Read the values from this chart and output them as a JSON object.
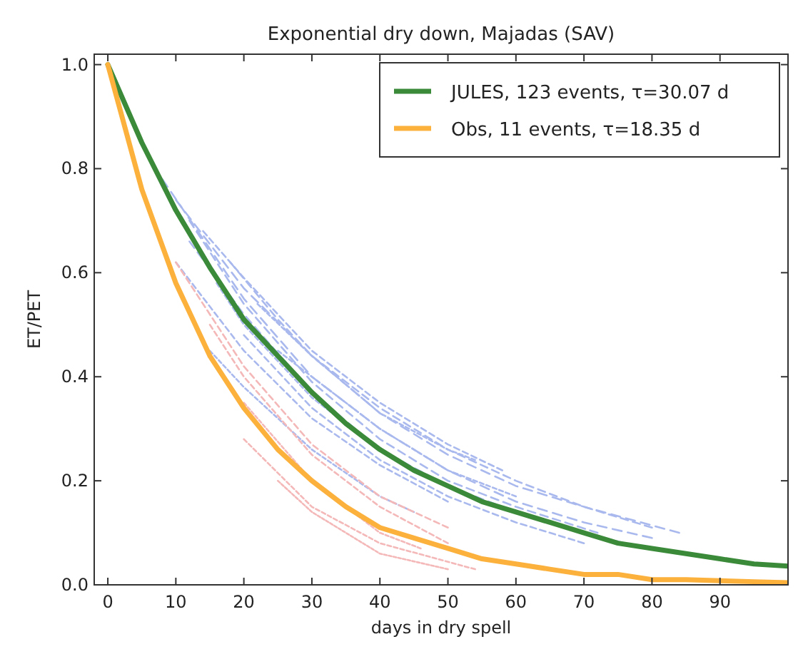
{
  "chart_data": {
    "type": "line",
    "title": "Exponential dry down, Majadas (SAV)",
    "xlabel": "days in dry spell",
    "ylabel": "ET/PET",
    "xlim": [
      -2,
      100
    ],
    "ylim": [
      0,
      1.02
    ],
    "xticks": [
      0,
      10,
      20,
      30,
      40,
      50,
      60,
      70,
      80,
      90
    ],
    "yticks": [
      {
        "value": 0,
        "label": "0.0"
      },
      0.2,
      0.4,
      0.6,
      0.8,
      {
        "value": 1,
        "label": "1.0"
      }
    ],
    "grid": false,
    "legend": "top right",
    "series": [
      {
        "color": "#a9b9ee",
        "line_style": "dashed",
        "x": [
          8,
          20,
          30,
          40,
          50,
          60,
          70,
          80
        ],
        "values": [
          0.78,
          0.55,
          0.4,
          0.3,
          0.22,
          0.16,
          0.12,
          0.09
        ]
      },
      {
        "color": "#a9b9ee",
        "line_style": "dashed",
        "x": [
          10,
          20,
          30,
          40,
          50,
          60,
          70,
          84
        ],
        "values": [
          0.74,
          0.57,
          0.44,
          0.33,
          0.25,
          0.19,
          0.15,
          0.1
        ]
      },
      {
        "color": "#a9b9ee",
        "line_style": "dashed",
        "x": [
          12,
          20,
          30,
          40,
          50,
          60,
          72
        ],
        "values": [
          0.7,
          0.54,
          0.39,
          0.28,
          0.2,
          0.15,
          0.1
        ]
      },
      {
        "color": "#a9b9ee",
        "line_style": "dashed",
        "x": [
          10,
          20,
          30,
          40,
          50
        ],
        "values": [
          0.62,
          0.45,
          0.32,
          0.23,
          0.16
        ]
      },
      {
        "color": "#a9b9ee",
        "line_style": "dashed",
        "x": [
          14,
          20,
          30,
          40,
          50,
          58
        ],
        "values": [
          0.68,
          0.59,
          0.45,
          0.35,
          0.27,
          0.22
        ]
      },
      {
        "color": "#a9b9ee",
        "line_style": "dashed",
        "x": [
          16,
          20,
          30,
          40,
          48
        ],
        "values": [
          0.58,
          0.5,
          0.36,
          0.26,
          0.2
        ]
      },
      {
        "color": "#a9b9ee",
        "line_style": "dashed",
        "x": [
          12,
          20,
          30,
          40,
          50,
          60,
          70,
          76
        ],
        "values": [
          0.66,
          0.52,
          0.37,
          0.26,
          0.19,
          0.14,
          0.1,
          0.08
        ]
      },
      {
        "color": "#a9b9ee",
        "line_style": "dashed",
        "x": [
          18,
          25,
          30,
          40,
          50,
          60,
          70,
          80
        ],
        "values": [
          0.62,
          0.51,
          0.44,
          0.34,
          0.26,
          0.2,
          0.15,
          0.11
        ]
      },
      {
        "color": "#a9b9ee",
        "line_style": "dashed",
        "x": [
          15,
          20,
          30,
          40,
          45
        ],
        "values": [
          0.45,
          0.38,
          0.26,
          0.17,
          0.14
        ]
      },
      {
        "color": "#a9b9ee",
        "line_style": "dashed",
        "x": [
          20,
          30,
          40,
          50,
          60,
          70
        ],
        "values": [
          0.48,
          0.34,
          0.24,
          0.17,
          0.12,
          0.08
        ]
      },
      {
        "color": "#a9b9ee",
        "line_style": "dashed",
        "x": [
          22,
          30,
          40,
          50,
          54
        ],
        "values": [
          0.54,
          0.44,
          0.33,
          0.26,
          0.24
        ]
      },
      {
        "color": "#a9b9ee",
        "line_style": "dashed",
        "x": [
          25,
          30,
          40,
          50,
          60
        ],
        "values": [
          0.45,
          0.4,
          0.3,
          0.22,
          0.17
        ]
      },
      {
        "color": "#f4b8b8",
        "line_style": "dashed",
        "x": [
          10,
          20,
          30,
          40,
          50
        ],
        "values": [
          0.62,
          0.42,
          0.27,
          0.17,
          0.11
        ]
      },
      {
        "color": "#f4b8b8",
        "line_style": "dashed",
        "x": [
          15,
          20,
          30,
          40,
          50
        ],
        "values": [
          0.5,
          0.4,
          0.25,
          0.15,
          0.08
        ]
      },
      {
        "color": "#f4b8b8",
        "line_style": "dashed",
        "x": [
          20,
          30,
          40,
          54
        ],
        "values": [
          0.28,
          0.15,
          0.08,
          0.03
        ]
      },
      {
        "color": "#f4b8b8",
        "line_style": "dashed",
        "x": [
          25,
          30,
          40,
          50
        ],
        "values": [
          0.2,
          0.14,
          0.06,
          0.03
        ]
      },
      {
        "color": "#f4b8b8",
        "line_style": "dashed",
        "x": [
          20,
          30,
          40,
          46
        ],
        "values": [
          0.35,
          0.2,
          0.1,
          0.07
        ]
      },
      {
        "name": "JULES, 123 events, τ=30.07 d",
        "color": "#3a8a3a",
        "x": [
          0,
          5,
          10,
          15,
          20,
          25,
          30,
          35,
          40,
          45,
          50,
          55,
          60,
          65,
          70,
          75,
          80,
          85,
          90,
          95,
          100
        ],
        "values": [
          1,
          0.85,
          0.72,
          0.61,
          0.51,
          0.44,
          0.37,
          0.31,
          0.26,
          0.22,
          0.19,
          0.16,
          0.14,
          0.12,
          0.1,
          0.08,
          0.07,
          0.06,
          0.05,
          0.04,
          0.036
        ]
      },
      {
        "name": "Obs, 11 events, τ=18.35 d",
        "color": "#fbb13c",
        "x": [
          0,
          5,
          10,
          15,
          20,
          25,
          30,
          35,
          40,
          45,
          50,
          55,
          60,
          65,
          70,
          75,
          80,
          85,
          90,
          95,
          100
        ],
        "values": [
          1,
          0.76,
          0.58,
          0.44,
          0.34,
          0.26,
          0.2,
          0.15,
          0.11,
          0.09,
          0.07,
          0.05,
          0.04,
          0.03,
          0.02,
          0.02,
          0.01,
          0.01,
          0.008,
          0.006,
          0.004
        ]
      }
    ]
  }
}
